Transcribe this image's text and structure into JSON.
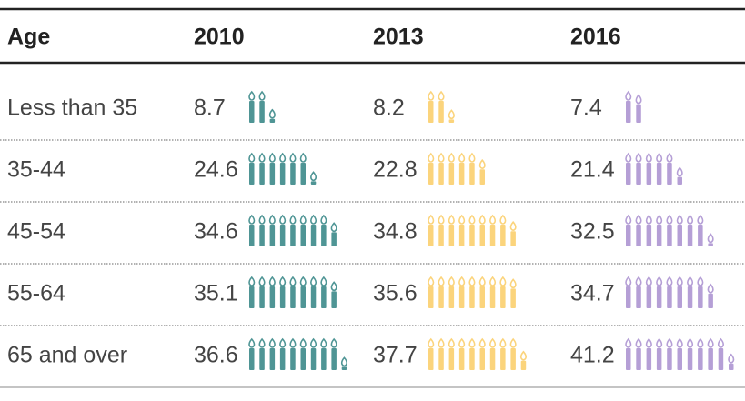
{
  "table": {
    "header": [
      "Age",
      "2010",
      "2013",
      "2016"
    ],
    "rows": [
      [
        "Less than 35",
        8.7,
        8.2,
        7.4
      ],
      [
        "35-44",
        24.6,
        22.8,
        21.4
      ],
      [
        "45-54",
        34.6,
        34.8,
        32.5
      ],
      [
        "55-64",
        35.1,
        35.6,
        34.7
      ],
      [
        "65 and over",
        36.6,
        37.7,
        41.2
      ]
    ],
    "colors": [
      "#4f9595",
      "#fbd47c",
      "#b59fd6"
    ]
  }
}
